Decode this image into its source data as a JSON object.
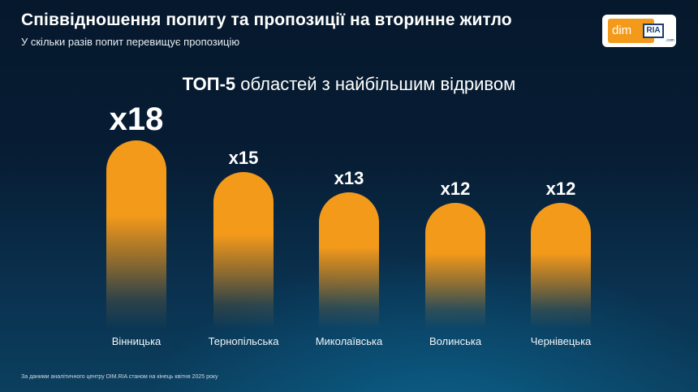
{
  "header": {
    "title": "Співвідношення попиту та пропозиції на вторинне житло",
    "subtitle": "У скільки разів попит перевищує пропозицію"
  },
  "logo": {
    "dim": "dim",
    "ria": "RIA",
    "com": ".com"
  },
  "heading": {
    "bold": "ТОП-5",
    "rest": " областей з найбільшим відривом"
  },
  "chart_data": {
    "type": "bar",
    "categories": [
      "Вінницька",
      "Тернопільська",
      "Миколаївська",
      "Волинська",
      "Чернівецька"
    ],
    "values": [
      18,
      15,
      13,
      12,
      12
    ],
    "value_labels": [
      "x18",
      "x15",
      "x13",
      "x12",
      "x12"
    ],
    "title": "ТОП-5 областей з найбільшим відривом",
    "xlabel": "",
    "ylabel": "",
    "bar_color": "#f39a1b"
  },
  "footnote": "За даними аналітичного центру DIM.RIA станом на кінець квітня 2025 року",
  "colors": {
    "accent": "#f39a1b",
    "background": "#071d34",
    "logo_blue": "#1b3d73"
  }
}
